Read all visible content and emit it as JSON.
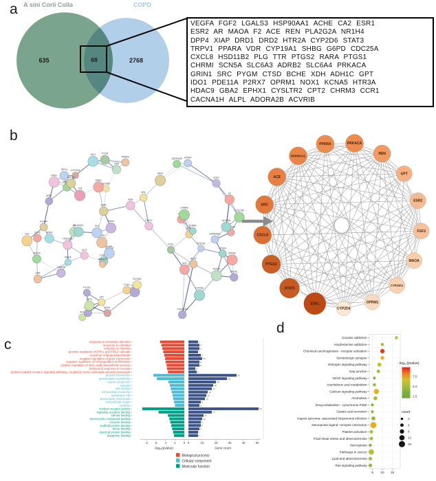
{
  "panel_labels": {
    "a": "a",
    "b": "b",
    "c": "c",
    "d": "d"
  },
  "gene_box": {
    "lines": [
      "VEGFA FGF2 LGALS3 HSP90AA1 ACHE CA2 ESR1",
      "ESR2 AR MAOA F2 ACE REN PLA2G2A NR1H4",
      "DPP4 XIAP DRD1 DRD2 HTR2A CYP2D6 STAT3",
      "TRPV1 PPARA VDR CYP19A1 SHBG G6PD CDC25A",
      "CXCL8 HSD11B2 PLG TTR PTGS2 RARA PTGS1",
      "CHRMI SCN5A SLC6A3 ADRB2 SLC6A4 PRKACA",
      "GRIN1 SRC PYGM CTSD BCHE XDH ADH1C GPT",
      "IDO1 PDE11A P2RX7 OPRM1 NOX1 KCNA5 HTR3A",
      "HDAC9 GBA2 EPHX1 CYSLTR2 CPT2 CHRM3 CCR1",
      "CACNA1H ALPL ADORA2B ACVRIB"
    ]
  },
  "networks": {
    "string_genes": [
      "VEGFA",
      "FGF2",
      "LGALS3",
      "HSP90AA1",
      "ACHE",
      "CA2",
      "ESR1",
      "ESR2",
      "AR",
      "MAOA",
      "F2",
      "ACE",
      "REN",
      "PLA2G2A",
      "NR1H4",
      "DPP4",
      "XIAP",
      "DRD1",
      "DRD2",
      "HTR2A",
      "CYP2D6",
      "STAT3",
      "TRPV1",
      "PPARA",
      "VDR",
      "CYP19A1",
      "SHBG",
      "G6PD",
      "CDC25A",
      "CXCL8",
      "HSD11B2",
      "PLG",
      "TTR",
      "PTGS2",
      "RARA",
      "PTGS1",
      "CHRMI",
      "SCN5A",
      "SLC6A3",
      "ADRB2",
      "SLC6A4",
      "PRKACA",
      "GRIN1",
      "SRC",
      "PYGM",
      "CTSD",
      "BCHE",
      "XDH",
      "ADH1C",
      "GPT",
      "IDO1",
      "PDE11A",
      "P2RX7",
      "OPRM1",
      "NOX1",
      "KCNA5",
      "HTR3A",
      "HDAC9",
      "GBA2",
      "EPHX1",
      "CYSLTR2",
      "CPT2",
      "CHRM3",
      "CCR1",
      "CACNA1H",
      "ALPL",
      "ADORA2B",
      "ACVRIB"
    ],
    "hub_nodes": [
      {
        "name": "PPARA",
        "color": "#ec8c51",
        "r": 13
      },
      {
        "name": "PRKACA",
        "color": "#ec8c51",
        "r": 13
      },
      {
        "name": "REN",
        "color": "#f09a64",
        "r": 12.5
      },
      {
        "name": "GPT",
        "color": "#f4b183",
        "r": 11.5
      },
      {
        "name": "ESR2",
        "color": "#f5ba8f",
        "r": 11.5
      },
      {
        "name": "FGF2",
        "color": "#f6c29b",
        "r": 11.5
      },
      {
        "name": "MAOA",
        "color": "#f8ceac",
        "r": 11.5
      },
      {
        "name": "CYP19A1",
        "color": "#f8d2b2",
        "r": 11.5
      },
      {
        "name": "OPRM1",
        "color": "#f9dbc0",
        "r": 11
      },
      {
        "name": "CYP2D6",
        "color": "#fae9d5",
        "r": 10.5
      },
      {
        "name": "ESR1",
        "color": "#bc4a16",
        "r": 16
      },
      {
        "name": "STAT3",
        "color": "#c65a22",
        "r": 14.5
      },
      {
        "name": "PTGS2",
        "color": "#ca5e26",
        "r": 13.5
      },
      {
        "name": "CXCL8",
        "color": "#da6e33",
        "r": 13
      },
      {
        "name": "SRC",
        "color": "#e2793c",
        "r": 13
      },
      {
        "name": "ACE",
        "color": "#e68044",
        "r": 13
      },
      {
        "name": "HSP90AA1",
        "color": "#e98549",
        "r": 13
      }
    ]
  },
  "chart_data": [
    {
      "id": "venn_panel_a",
      "type": "venn",
      "sets": [
        {
          "label": "A sini Corii Colla",
          "size": "635",
          "fill": "#7aa58c",
          "label_color": "#8aa391"
        },
        {
          "label": "COPD",
          "size": "2768",
          "fill": "#b2cfe9",
          "label_color": "#a8c6e2"
        }
      ],
      "overlap": {
        "size": "68"
      }
    },
    {
      "id": "go_enrichment_panel_c",
      "type": "bar",
      "orientation": "diverging-horizontal",
      "xlabel_left": "-log₁₀(pvalue)",
      "xlabel_right": "Gene count",
      "left_ticks": [
        8,
        6,
        4,
        2,
        0
      ],
      "right_ticks": [
        0,
        10,
        20,
        30,
        40,
        50
      ],
      "count_color": "#3C5488",
      "legend": [
        "Biological process",
        "Cellular component",
        "Molecular function"
      ],
      "groups": [
        {
          "name": "Biological process",
          "color": "#E64B35",
          "terms": [
            {
              "term": "response to xenobiotic stimulus",
              "neglog10p": 5.2,
              "count": 7
            },
            {
              "term": "response to estradiol",
              "neglog10p": 4.9,
              "count": 8
            },
            {
              "term": "response to hypoxia",
              "neglog10p": 4.7,
              "count": 8
            },
            {
              "term": "positive regulation of ERK1 and ERK2 cascade",
              "neglog10p": 4.5,
              "count": 7
            },
            {
              "term": "response to lipopolysaccharide",
              "neglog10p": 4.3,
              "count": 9
            },
            {
              "term": "negative regulation of gene expression",
              "neglog10p": 4.1,
              "count": 10
            },
            {
              "term": "negative regulation of cell population proliferation",
              "neglog10p": 4.0,
              "count": 8
            },
            {
              "term": "positive regulation of nitric oxide biosynthetic process",
              "neglog10p": 3.8,
              "count": 8
            },
            {
              "term": "behavioral response to cocaine",
              "neglog10p": 3.7,
              "count": 5
            },
            {
              "term": "protein-coupled receptor signaling pathway, coupled to cyclic nucleotide second messenger",
              "neglog10p": 3.5,
              "count": 6
            }
          ]
        },
        {
          "name": "Cellular component",
          "color": "#4DBBD5",
          "terms": [
            {
              "term": "plasma membrane",
              "neglog10p": 6.6,
              "count": 35
            },
            {
              "term": "postsynaptic membrane",
              "neglog10p": 5.9,
              "count": 28
            },
            {
              "term": "neuron projection",
              "neglog10p": 3.4,
              "count": 20
            },
            {
              "term": "caveola",
              "neglog10p": 3.1,
              "count": 18
            },
            {
              "term": "cell surface",
              "neglog10p": 2.9,
              "count": 17
            },
            {
              "term": "extracellular exosome",
              "neglog10p": 2.7,
              "count": 14
            },
            {
              "term": "membrane raft",
              "neglog10p": 2.5,
              "count": 13
            },
            {
              "term": "presynaptic membrane",
              "neglog10p": 2.4,
              "count": 12
            },
            {
              "term": "extracellular region",
              "neglog10p": 2.2,
              "count": 9
            },
            {
              "term": "synapse",
              "neglog10p": 2.0,
              "count": 8
            }
          ]
        },
        {
          "name": "Molecular function",
          "color": "#00A087",
          "terms": [
            {
              "term": "nuclear receptor activity",
              "neglog10p": 9.0,
              "count": 51
            },
            {
              "term": "signaling receptor binding",
              "neglog10p": 5.5,
              "count": 17
            },
            {
              "term": "steroid binding",
              "neglog10p": 3.5,
              "count": 11
            },
            {
              "term": "heterocyclic compound binding",
              "neglog10p": 3.2,
              "count": 10
            },
            {
              "term": "enzyme binding",
              "neglog10p": 3.0,
              "count": 9
            },
            {
              "term": "scaffold protein binding",
              "neglog10p": 2.8,
              "count": 9
            },
            {
              "term": "heme binding",
              "neglog10p": 2.6,
              "count": 8
            },
            {
              "term": "identical protein binding",
              "neglog10p": 2.4,
              "count": 7
            },
            {
              "term": "dopamine binding",
              "neglog10p": 2.2,
              "count": 7
            }
          ]
        }
      ]
    },
    {
      "id": "kegg_dotplot_panel_d",
      "type": "scatter",
      "x_ticks": [
        5,
        10,
        15
      ],
      "color_legend": {
        "title": "- log₁₀(pvalue)",
        "ticks": [
          "7.5",
          "5.0",
          "2.5"
        ]
      },
      "count_legend": {
        "title": "count",
        "sizes": [
          3,
          6,
          9,
          12,
          15
        ]
      },
      "pathways": [
        {
          "name": "Cocaine addiction",
          "x": 17,
          "count": 5,
          "neglog10p": 4.5
        },
        {
          "name": "Amphetamine addiction",
          "x": 10,
          "count": 5,
          "neglog10p": 4.0
        },
        {
          "name": "Chemical carcinogenesis - receptor activation",
          "x": 10,
          "count": 9,
          "neglog10p": 9.0
        },
        {
          "name": "Serotonergic synapse",
          "x": 10,
          "count": 7,
          "neglog10p": 6.0
        },
        {
          "name": "Estrogen signaling pathway",
          "x": 8.5,
          "count": 8,
          "neglog10p": 4.5
        },
        {
          "name": "Gap junction",
          "x": 8,
          "count": 6,
          "neglog10p": 3.8
        },
        {
          "name": "VEGF signaling pathway",
          "x": 6,
          "count": 4,
          "neglog10p": 3.0
        },
        {
          "name": "Arachidonic acid metabolism",
          "x": 6,
          "count": 5,
          "neglog10p": 3.5
        },
        {
          "name": "Calcium signaling pathway",
          "x": 7,
          "count": 12,
          "neglog10p": 6.0
        },
        {
          "name": "Alcoholism",
          "x": 6.5,
          "count": 8,
          "neglog10p": 4.2
        },
        {
          "name": "Drug metabolism - cytochrome P450",
          "x": 5,
          "count": 4,
          "neglog10p": 3.0
        },
        {
          "name": "Gastric acid secretion",
          "x": 5,
          "count": 4,
          "neglog10p": 3.2
        },
        {
          "name": "Kaposi sarcoma- associated herpesvirus infection",
          "x": 5.5,
          "count": 8,
          "neglog10p": 3.5
        },
        {
          "name": "Neuroactive ligand- receptor interaction",
          "x": 5.5,
          "count": 15,
          "neglog10p": 6.2
        },
        {
          "name": "Platelet activation",
          "x": 4.5,
          "count": 6,
          "neglog10p": 4.0
        },
        {
          "name": "Fluid shear stress and atherosclerosis",
          "x": 4.5,
          "count": 6,
          "neglog10p": 4.0
        },
        {
          "name": "Necroptosis",
          "x": 4,
          "count": 4,
          "neglog10p": 3.0
        },
        {
          "name": "Pathways in cancer",
          "x": 4.5,
          "count": 12,
          "neglog10p": 4.3
        },
        {
          "name": "Lipid and atherosclerosis",
          "x": 4,
          "count": 6,
          "neglog10p": 4.0
        },
        {
          "name": "Ras signaling pathway",
          "x": 4,
          "count": 6,
          "neglog10p": 3.3
        }
      ]
    }
  ]
}
